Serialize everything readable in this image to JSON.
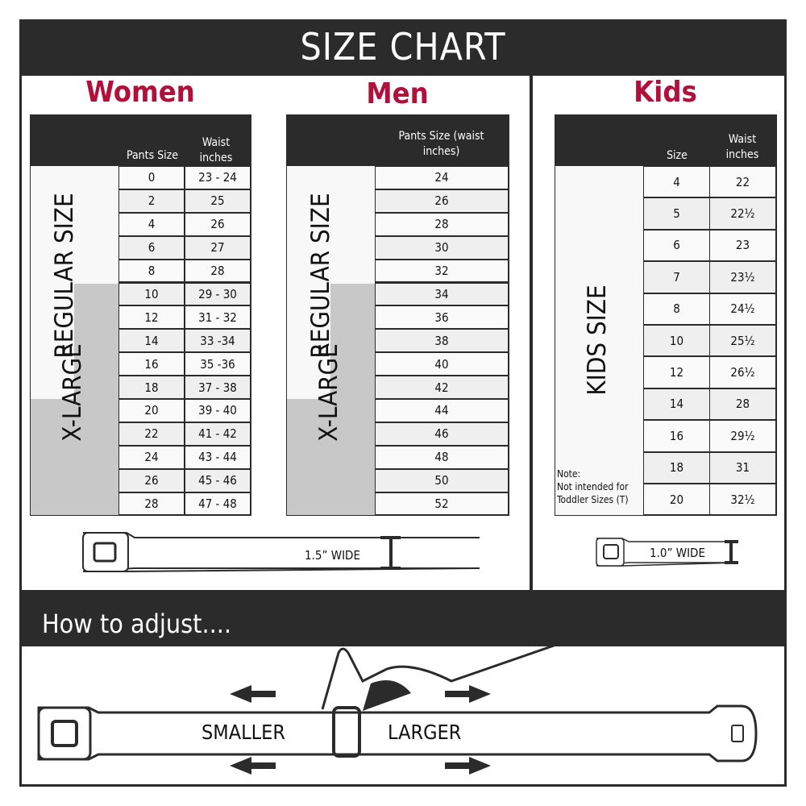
{
  "title": "SIZE CHART",
  "women": {
    "heading": "Women",
    "col1": "Pants Size",
    "col2": "Waist inches",
    "regular_label": "REGULAR SIZE",
    "xlarge_label": "X-LARGE",
    "rows": [
      [
        "0",
        "23 - 24"
      ],
      [
        "2",
        "25"
      ],
      [
        "4",
        "26"
      ],
      [
        "6",
        "27"
      ],
      [
        "8",
        "28"
      ],
      [
        "10",
        "29 - 30"
      ],
      [
        "12",
        "31 - 32"
      ],
      [
        "14",
        "33 -34"
      ],
      [
        "16",
        "35 -36"
      ],
      [
        "18",
        "37 - 38"
      ],
      [
        "20",
        "39 - 40"
      ],
      [
        "22",
        "41 - 42"
      ],
      [
        "24",
        "43 - 44"
      ],
      [
        "26",
        "45 - 46"
      ],
      [
        "28",
        "47 - 48"
      ]
    ],
    "belt_width": "1.5” WIDE"
  },
  "men": {
    "heading": "Men",
    "col1": "Pants Size (waist inches)",
    "regular_label": "REGULAR SIZE",
    "xlarge_label": "X-LARGE",
    "rows": [
      "24",
      "26",
      "28",
      "30",
      "32",
      "34",
      "36",
      "38",
      "40",
      "42",
      "44",
      "46",
      "48",
      "50",
      "52"
    ]
  },
  "kids": {
    "heading": "Kids",
    "col1": "Size",
    "col2": "Waist inches",
    "label": "KIDS SIZE",
    "note_title": "Note:",
    "note_text": "Not intended for Toddler Sizes (T)",
    "rows": [
      [
        "4",
        "22"
      ],
      [
        "5",
        "22½"
      ],
      [
        "6",
        "23"
      ],
      [
        "7",
        "23½"
      ],
      [
        "8",
        "24½"
      ],
      [
        "10",
        "25½"
      ],
      [
        "12",
        "26½"
      ],
      [
        "14",
        "28"
      ],
      [
        "16",
        "29½"
      ],
      [
        "18",
        "31"
      ],
      [
        "20",
        "32½"
      ]
    ],
    "belt_width": "1.0” WIDE"
  },
  "adjust": {
    "heading": "How to adjust....",
    "smaller": "SMALLER",
    "larger": "LARGER"
  },
  "colors": {
    "dark": "#2b2b2b",
    "accent": "#b0103a",
    "xlarge_gray": "#c8c8c8",
    "alt_row": "#efefef"
  }
}
